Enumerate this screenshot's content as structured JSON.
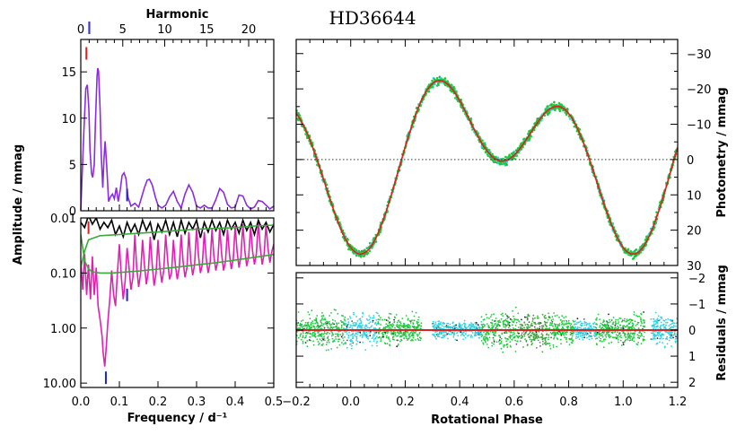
{
  "title": "HD36644",
  "chart_data": [
    {
      "id": "amplitude-spectrum",
      "type": "line",
      "xlabel": "",
      "top_xlabel": "Harmonic",
      "ylabel": "Amplitude / mmag",
      "xlim": [
        0,
        0.5
      ],
      "ylim": [
        0,
        18.5
      ],
      "x_ticks": [
        0.0,
        0.1,
        0.2,
        0.3,
        0.4,
        0.5
      ],
      "y_ticks": [
        0,
        5,
        10,
        15
      ],
      "y_tick_labels": [
        "0",
        "5",
        "10",
        "15"
      ],
      "top_ticks": [
        0,
        5,
        10,
        15,
        20
      ],
      "top_tick_labels": [
        "0",
        "5",
        "10",
        "15",
        "20"
      ],
      "harmonic_spacing": 0.02175,
      "series": [
        {
          "color": "#8a2be2",
          "x": [
            0.0,
            0.008,
            0.013,
            0.017,
            0.021,
            0.024,
            0.028,
            0.031,
            0.035,
            0.038,
            0.042,
            0.044,
            0.046,
            0.05,
            0.053,
            0.057,
            0.06,
            0.063,
            0.067,
            0.072,
            0.077,
            0.082,
            0.087,
            0.092,
            0.097,
            0.102,
            0.107,
            0.112,
            0.117,
            0.122,
            0.13,
            0.14,
            0.15,
            0.158,
            0.165,
            0.172,
            0.178,
            0.185,
            0.193,
            0.2,
            0.21,
            0.22,
            0.23,
            0.24,
            0.25,
            0.26,
            0.27,
            0.28,
            0.29,
            0.3,
            0.31,
            0.32,
            0.33,
            0.34,
            0.35,
            0.36,
            0.37,
            0.38,
            0.39,
            0.4,
            0.41,
            0.42,
            0.43,
            0.44,
            0.45,
            0.46,
            0.47,
            0.48,
            0.49,
            0.5
          ],
          "y": [
            0.1,
            8.5,
            13.2,
            13.6,
            11.0,
            6.5,
            4.0,
            3.6,
            5.0,
            9.5,
            14.5,
            15.4,
            15.1,
            11.0,
            6.0,
            2.5,
            5.5,
            7.5,
            5.0,
            1.0,
            1.5,
            1.8,
            1.3,
            2.5,
            1.0,
            2.2,
            3.8,
            4.1,
            3.5,
            1.5,
            0.5,
            0.8,
            0.4,
            1.5,
            2.5,
            3.3,
            3.4,
            2.8,
            1.5,
            0.6,
            0.3,
            0.6,
            1.5,
            2.1,
            1.0,
            0.3,
            1.8,
            2.8,
            2.0,
            0.5,
            0.3,
            0.6,
            0.3,
            0.3,
            1.2,
            2.4,
            2.0,
            0.7,
            0.3,
            0.4,
            1.7,
            1.6,
            0.6,
            0.2,
            0.4,
            1.1,
            1.0,
            0.6,
            0.2,
            0.5
          ]
        }
      ],
      "markers": [
        {
          "axis": "top",
          "x": 0.022,
          "color": "#3a3ad0"
        },
        {
          "axis": "data",
          "x": 0.0145,
          "y": 17.0,
          "color": "#e02020"
        },
        {
          "axis": "data",
          "x": 0.12,
          "y": 1.7,
          "color": "#2020d0"
        }
      ]
    },
    {
      "id": "log-amplitude-spectrum",
      "type": "line",
      "scale": "log-inverted",
      "xlabel": "Frequency / d⁻¹",
      "ylabel": "Amplitude / mmag",
      "xlim": [
        0,
        0.5
      ],
      "ylim": [
        0.01,
        12
      ],
      "x_ticks": [
        0.0,
        0.1,
        0.2,
        0.3,
        0.4,
        0.5
      ],
      "x_tick_labels": [
        "0.0",
        "0.1",
        "0.2",
        "0.3",
        "0.4",
        "0.5"
      ],
      "y_ticks": [
        0.01,
        0.1,
        1.0,
        10.0
      ],
      "y_tick_labels": [
        "0.01",
        "0.10",
        "1.00",
        "10.00"
      ],
      "series": [
        {
          "color": "#e020b0",
          "x": [
            0.0,
            0.005,
            0.01,
            0.015,
            0.02,
            0.025,
            0.03,
            0.035,
            0.04,
            0.045,
            0.05,
            0.055,
            0.058,
            0.062,
            0.066,
            0.07,
            0.075,
            0.08,
            0.085,
            0.09,
            0.095,
            0.1,
            0.105,
            0.11,
            0.115,
            0.12,
            0.125,
            0.13,
            0.135,
            0.14,
            0.145,
            0.15,
            0.155,
            0.16,
            0.165,
            0.17,
            0.175,
            0.18,
            0.185,
            0.19,
            0.195,
            0.2,
            0.205,
            0.21,
            0.215,
            0.22,
            0.225,
            0.23,
            0.235,
            0.24,
            0.245,
            0.25,
            0.255,
            0.26,
            0.265,
            0.27,
            0.275,
            0.28,
            0.285,
            0.29,
            0.295,
            0.3,
            0.305,
            0.31,
            0.315,
            0.32,
            0.325,
            0.33,
            0.335,
            0.34,
            0.345,
            0.35,
            0.355,
            0.36,
            0.365,
            0.37,
            0.375,
            0.38,
            0.385,
            0.39,
            0.395,
            0.4,
            0.405,
            0.41,
            0.415,
            0.42,
            0.425,
            0.43,
            0.435,
            0.44,
            0.445,
            0.45,
            0.455,
            0.46,
            0.465,
            0.47,
            0.475,
            0.48,
            0.485,
            0.49,
            0.495,
            0.5
          ],
          "y": [
            0.06,
            0.2,
            0.045,
            0.25,
            0.07,
            0.3,
            0.05,
            0.25,
            0.08,
            0.4,
            0.7,
            1.4,
            2.8,
            5.0,
            2.2,
            0.8,
            0.3,
            0.09,
            0.25,
            0.4,
            0.1,
            0.03,
            0.12,
            0.3,
            0.14,
            0.035,
            0.08,
            0.2,
            0.12,
            0.02,
            0.08,
            0.18,
            0.1,
            0.025,
            0.07,
            0.16,
            0.09,
            0.022,
            0.07,
            0.17,
            0.1,
            0.025,
            0.08,
            0.15,
            0.09,
            0.02,
            0.06,
            0.13,
            0.1,
            0.025,
            0.07,
            0.13,
            0.08,
            0.02,
            0.06,
            0.12,
            0.08,
            0.018,
            0.06,
            0.11,
            0.07,
            0.015,
            0.05,
            0.1,
            0.07,
            0.018,
            0.055,
            0.1,
            0.065,
            0.016,
            0.05,
            0.09,
            0.06,
            0.015,
            0.045,
            0.09,
            0.06,
            0.016,
            0.045,
            0.085,
            0.055,
            0.014,
            0.04,
            0.08,
            0.05,
            0.013,
            0.04,
            0.075,
            0.05,
            0.014,
            0.04,
            0.07,
            0.045,
            0.012,
            0.035,
            0.07,
            0.045,
            0.013,
            0.035,
            0.065,
            0.04,
            0.03
          ]
        },
        {
          "color": "#000000",
          "x": [
            0.0,
            0.01,
            0.02,
            0.03,
            0.04,
            0.05,
            0.06,
            0.07,
            0.08,
            0.09,
            0.1,
            0.11,
            0.12,
            0.13,
            0.14,
            0.15,
            0.16,
            0.17,
            0.18,
            0.19,
            0.2,
            0.21,
            0.22,
            0.23,
            0.24,
            0.25,
            0.26,
            0.27,
            0.28,
            0.29,
            0.3,
            0.31,
            0.32,
            0.33,
            0.34,
            0.35,
            0.36,
            0.37,
            0.38,
            0.39,
            0.4,
            0.41,
            0.42,
            0.43,
            0.44,
            0.45,
            0.46,
            0.47,
            0.48,
            0.49,
            0.5
          ],
          "y": [
            0.012,
            0.015,
            0.009,
            0.013,
            0.01,
            0.016,
            0.012,
            0.015,
            0.011,
            0.02,
            0.014,
            0.022,
            0.012,
            0.018,
            0.013,
            0.02,
            0.011,
            0.017,
            0.012,
            0.025,
            0.013,
            0.018,
            0.011,
            0.02,
            0.012,
            0.022,
            0.011,
            0.019,
            0.012,
            0.016,
            0.011,
            0.023,
            0.012,
            0.018,
            0.011,
            0.017,
            0.012,
            0.02,
            0.011,
            0.016,
            0.012,
            0.019,
            0.011,
            0.017,
            0.012,
            0.02,
            0.011,
            0.016,
            0.012,
            0.018,
            0.013
          ]
        },
        {
          "color": "#3aa83a",
          "x": [
            0.0,
            0.01,
            0.02,
            0.05,
            0.1,
            0.15,
            0.2,
            0.25,
            0.3,
            0.35,
            0.4,
            0.45,
            0.5
          ],
          "y": [
            0.08,
            0.04,
            0.025,
            0.021,
            0.02,
            0.019,
            0.018,
            0.017,
            0.016,
            0.0155,
            0.015,
            0.014,
            0.0135
          ]
        },
        {
          "color": "#3aa83a",
          "x": [
            0.0,
            0.005,
            0.01,
            0.02,
            0.03,
            0.05,
            0.08,
            0.1,
            0.15,
            0.2,
            0.25,
            0.3,
            0.35,
            0.4,
            0.45,
            0.5
          ],
          "y": [
            0.02,
            0.035,
            0.06,
            0.085,
            0.095,
            0.1,
            0.1,
            0.098,
            0.092,
            0.085,
            0.078,
            0.071,
            0.065,
            0.058,
            0.052,
            0.046
          ]
        }
      ],
      "markers": [
        {
          "x": 0.02,
          "y": 0.015,
          "color": "#e02020"
        },
        {
          "x": 0.12,
          "y": 0.25,
          "color": "#2020d0"
        },
        {
          "x": 0.065,
          "y": 8.0,
          "color": "#2020d0"
        }
      ]
    },
    {
      "id": "phased-light-curve",
      "type": "scatter",
      "xlabel": "",
      "ylabel": "Photometry / mmag",
      "xlim": [
        -0.2,
        1.2
      ],
      "ylim": [
        30,
        -34
      ],
      "y_ticks": [
        -30,
        -20,
        -10,
        0,
        10,
        20,
        30
      ],
      "y_tick_labels": [
        "−30",
        "−20",
        "−10",
        "0",
        "10",
        "20",
        "30"
      ],
      "reference_line": 0,
      "model": {
        "mean": -1.9,
        "harmonics": [
          [
            13.7,
            0.0
          ],
          [
            15.4,
            0.044
          ]
        ],
        "color": "#e02020"
      },
      "data_colors": [
        "#20c840",
        "#30d0e0",
        "#40a040",
        "#222222"
      ],
      "scatter_mmag": 0.9
    },
    {
      "id": "residuals",
      "type": "scatter",
      "xlabel": "Rotational Phase",
      "ylabel": "Residuals / mmag",
      "xlim": [
        -0.2,
        1.2
      ],
      "ylim": [
        2.2,
        -2.2
      ],
      "x_ticks": [
        -0.2,
        0.0,
        0.2,
        0.4,
        0.6,
        0.8,
        1.0,
        1.2
      ],
      "x_tick_labels": [
        "−0.2",
        "0.0",
        "0.2",
        "0.4",
        "0.6",
        "0.8",
        "1.0",
        "1.2"
      ],
      "y_ticks": [
        -2,
        -1,
        0,
        1,
        2
      ],
      "y_tick_labels": [
        "−2",
        "−1",
        "0",
        "1",
        "2"
      ],
      "reference_line": 0,
      "reference_color": "#e02020",
      "segments": [
        {
          "from": -0.2,
          "to": -0.12,
          "color": "#20c840",
          "spread": 0.9
        },
        {
          "from": -0.12,
          "to": -0.02,
          "color": "#30c050",
          "spread": 1.0
        },
        {
          "from": -0.02,
          "to": 0.1,
          "color": "#30d0e0",
          "spread": 0.9
        },
        {
          "from": 0.1,
          "to": 0.26,
          "color": "#20c840",
          "spread": 0.8
        },
        {
          "from": 0.3,
          "to": 0.4,
          "color": "#30d0e0",
          "spread": 0.5
        },
        {
          "from": 0.4,
          "to": 0.48,
          "color": "#30d0e0",
          "spread": 0.5
        },
        {
          "from": 0.48,
          "to": 0.55,
          "color": "#20c840",
          "spread": 0.9
        },
        {
          "from": 0.55,
          "to": 0.62,
          "color": "#20c840",
          "spread": 1.1
        },
        {
          "from": 0.62,
          "to": 0.72,
          "color": "#40a040",
          "spread": 1.0
        },
        {
          "from": 0.72,
          "to": 0.82,
          "color": "#20c840",
          "spread": 0.8
        },
        {
          "from": 0.82,
          "to": 0.9,
          "color": "#30d0e0",
          "spread": 0.6
        },
        {
          "from": 0.9,
          "to": 1.0,
          "color": "#20c840",
          "spread": 0.8
        },
        {
          "from": 1.0,
          "to": 1.08,
          "color": "#20c840",
          "spread": 0.9
        },
        {
          "from": 1.1,
          "to": 1.2,
          "color": "#30d0e0",
          "spread": 0.8
        }
      ],
      "dark_points": [
        "#222222",
        "#555555"
      ]
    }
  ]
}
